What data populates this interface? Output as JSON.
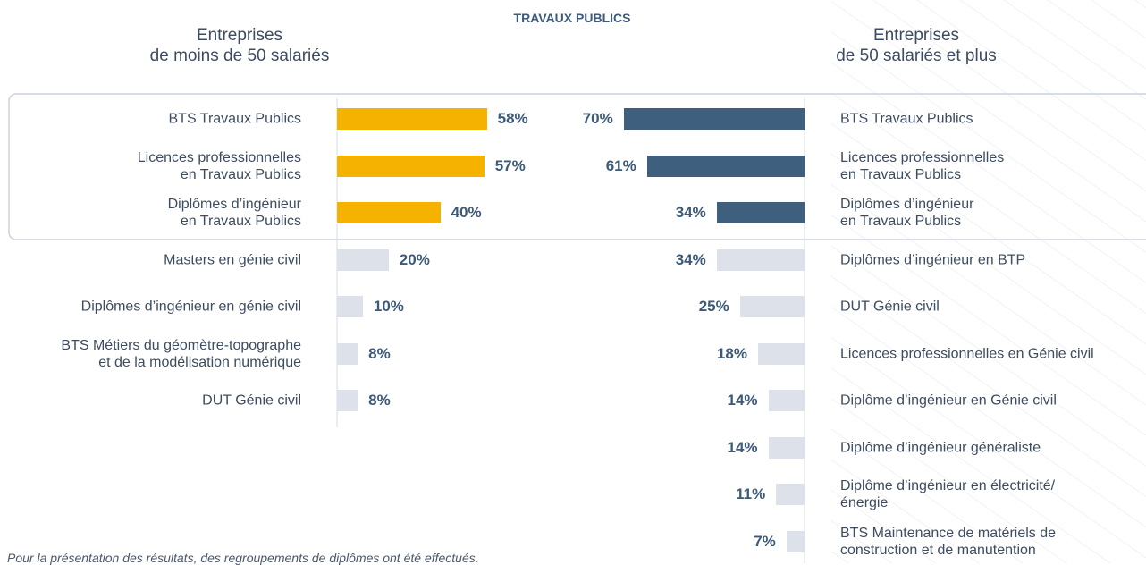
{
  "title": "TRAVAUX PUBLICS",
  "footnote": "Pour la présentation des résultats, des regroupements de diplômes ont été effectués.",
  "chart_data": [
    {
      "type": "bar",
      "orientation": "horizontal",
      "direction": "right",
      "subtitle": "Entreprises\nde moins de 50 salariés",
      "categories": [
        "BTS Travaux Publics",
        "Licences professionnelles\nen Travaux Publics",
        "Diplômes d’ingénieur\nen Travaux Publics",
        "Masters en génie civil",
        "Diplômes d’ingénieur en génie civil",
        "BTS Métiers du géomètre-topographe\net de la modélisation numérique",
        "DUT Génie civil"
      ],
      "values": [
        58,
        57,
        40,
        20,
        10,
        8,
        8
      ],
      "value_labels": [
        "58%",
        "57%",
        "40%",
        "20%",
        "10%",
        "8%",
        "8%"
      ],
      "colors": [
        "#f5b300",
        "#f5b300",
        "#f5b300",
        "#dde1ea",
        "#dde1ea",
        "#dde1ea",
        "#dde1ea"
      ]
    },
    {
      "type": "bar",
      "orientation": "horizontal",
      "direction": "left",
      "subtitle": "Entreprises\nde 50 salariés et plus",
      "categories": [
        "BTS Travaux Publics",
        "Licences professionnelles\nen Travaux Publics",
        "Diplômes d’ingénieur\nen Travaux Publics",
        "Diplômes d’ingénieur en BTP",
        "DUT Génie civil",
        "Licences professionnelles en Génie civil",
        "Diplôme d’ingénieur en Génie civil",
        "Diplôme d’ingénieur généraliste",
        "Diplôme d’ingénieur en électricité/\nénergie",
        "BTS Maintenance de matériels de\nconstruction et de manutention"
      ],
      "values": [
        70,
        61,
        34,
        34,
        25,
        18,
        14,
        14,
        11,
        7
      ],
      "value_labels": [
        "70%",
        "61%",
        "34%",
        "34%",
        "25%",
        "18%",
        "14%",
        "14%",
        "11%",
        "7%"
      ],
      "colors": [
        "#3e5f7e",
        "#3e5f7e",
        "#3e5f7e",
        "#dde1ea",
        "#dde1ea",
        "#dde1ea",
        "#dde1ea",
        "#dde1ea",
        "#dde1ea",
        "#dde1ea"
      ]
    }
  ]
}
